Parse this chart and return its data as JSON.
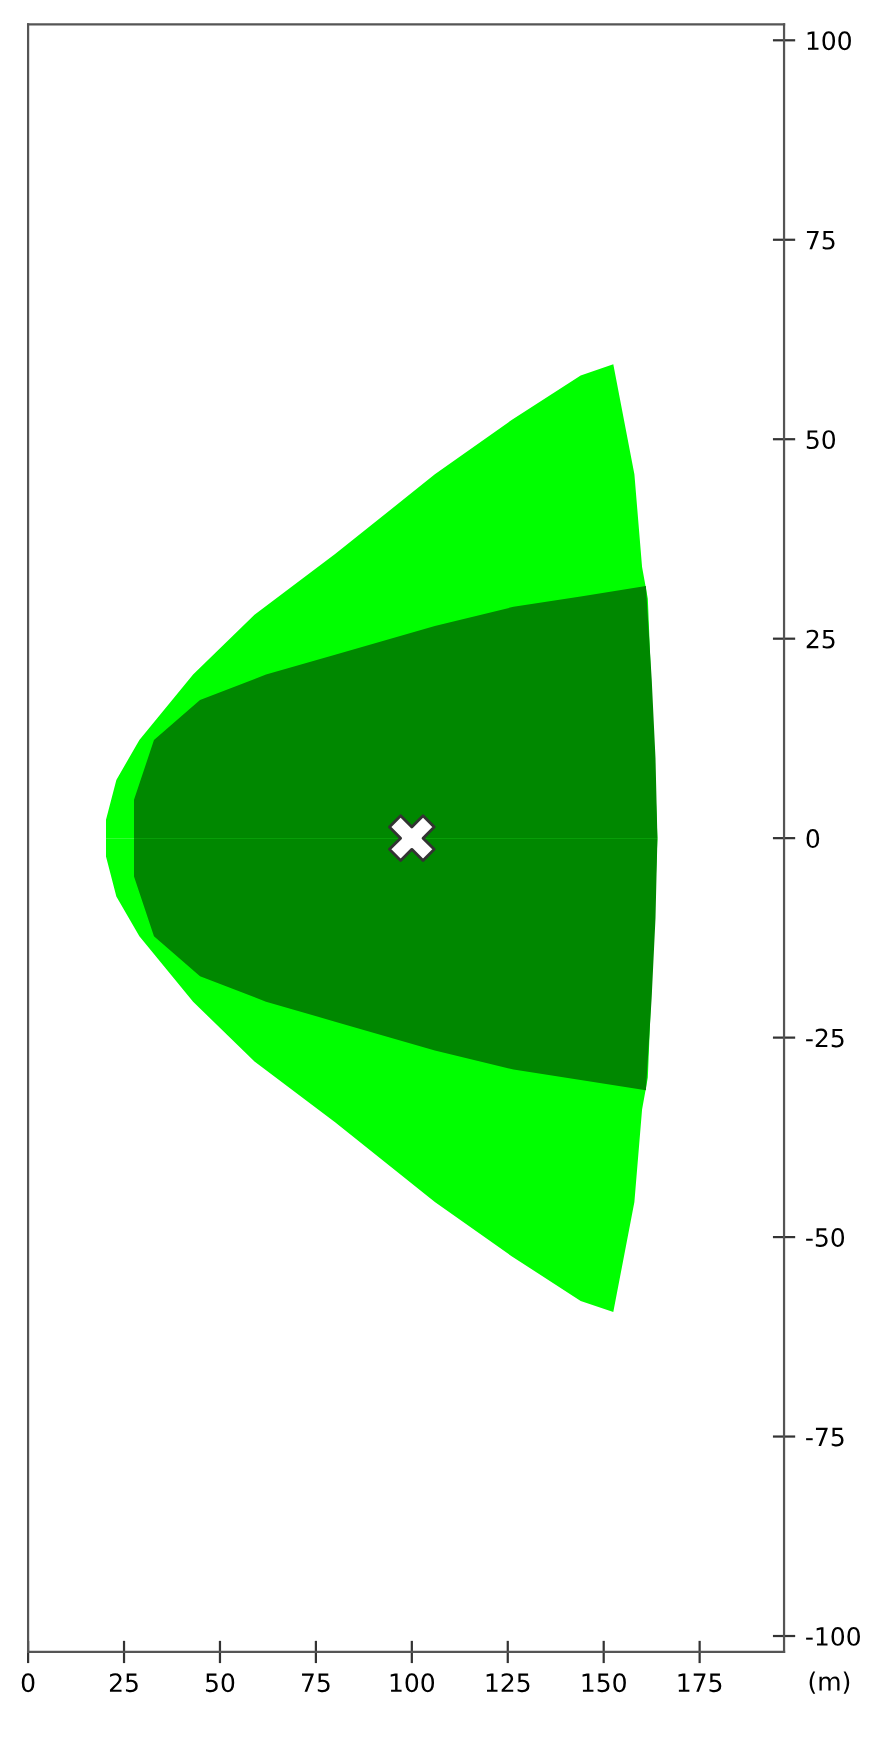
{
  "chart_data": {
    "type": "area",
    "xlabel": "(m)",
    "xlim": [
      0,
      197
    ],
    "ylim": [
      -102,
      102
    ],
    "xticks": [
      0,
      25,
      50,
      75,
      100,
      125,
      150,
      175
    ],
    "yticks": [
      -100,
      -75,
      -50,
      -25,
      0,
      25,
      50,
      75,
      100
    ],
    "grid": false,
    "series": [
      {
        "color": "#00ff00",
        "x": [
          20.3,
          23,
          29,
          43,
          59,
          80,
          106,
          126,
          144,
          152.5,
          158,
          160,
          161.5,
          164
        ],
        "values": [
          2.3,
          7.3,
          12.3,
          20.5,
          28,
          35.6,
          45.6,
          52.4,
          58,
          59.4,
          45.6,
          34,
          30,
          0
        ]
      },
      {
        "color": "#00ff00",
        "x": [
          20.3,
          23,
          29,
          43,
          59,
          80,
          106,
          126,
          144,
          152.5,
          158,
          160,
          161.5,
          164
        ],
        "values": [
          -2.3,
          -7.3,
          -12.3,
          -20.5,
          -28,
          -35.6,
          -45.6,
          -52.4,
          -58,
          -59.4,
          -45.6,
          -34,
          -30,
          0
        ]
      },
      {
        "color": "#008800",
        "x": [
          27.6,
          32.8,
          44.8,
          62,
          80,
          106,
          126.5,
          144,
          161,
          162.5,
          163.5,
          164
        ],
        "values": [
          4.8,
          12.3,
          17.3,
          20.5,
          23,
          26.6,
          29,
          30.3,
          31.6,
          20,
          10,
          0
        ]
      },
      {
        "color": "#008800",
        "x": [
          27.6,
          32.8,
          44.8,
          62,
          80,
          106,
          126.5,
          144,
          161,
          162.5,
          163.5,
          164
        ],
        "values": [
          -4.8,
          -12.3,
          -17.3,
          -20.5,
          -23,
          -26.6,
          -29,
          -30.3,
          -31.6,
          -20,
          -10,
          0
        ]
      },
      {
        "type": "scatter",
        "color": "#ffffff",
        "marker": "cross",
        "x": [
          100
        ],
        "values": [
          0
        ]
      }
    ]
  }
}
